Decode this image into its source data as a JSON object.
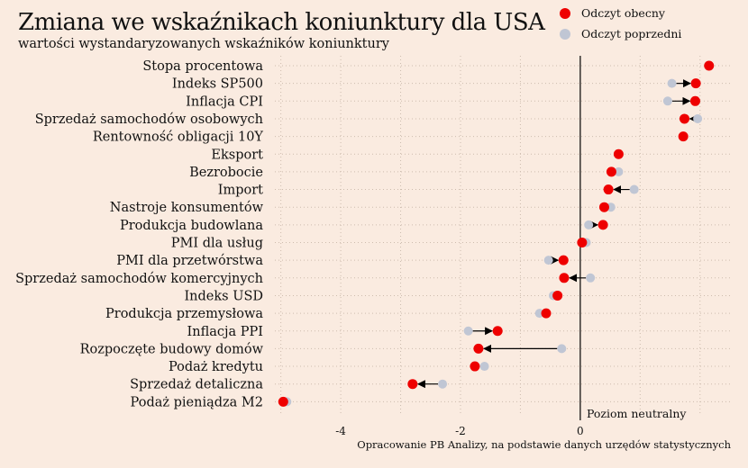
{
  "title": "Zmiana we wskaźnikach koniunktury dla USA",
  "subtitle": "wartości wystandaryzowanych wskaźników koniunktury",
  "caption": "Opracowanie PB Analizy, na podstawie danych urzędów statystycznych",
  "neutral_label": "Poziom neutralny",
  "colors": {
    "current": "#ee0000",
    "previous": "#c0c6d4",
    "background": "#faebe0",
    "arrow": "#000000",
    "grid": "#cdbcae"
  },
  "chart_data": {
    "type": "dot-arrow",
    "title": "Zmiana we wskaźnikach koniunktury dla USA",
    "subtitle": "wartości wystandaryzowanych wskaźników koniunktury",
    "xlim": [
      -5.1,
      2.5
    ],
    "xticks": [
      -4,
      -2,
      0
    ],
    "xtick_labels": [
      "-4",
      "-2",
      "0"
    ],
    "grid": true,
    "legend_position": "top-right",
    "series": [
      {
        "name": "Odczyt obecny",
        "color": "#ee0000"
      },
      {
        "name": "Odczyt poprzedni",
        "color": "#c0c6d4"
      }
    ],
    "categories": [
      "Stopa procentowa",
      "Indeks SP500",
      "Inflacja CPI",
      "Sprzedaż samochodów osobowych",
      "Rentowność obligacji 10Y",
      "Eksport",
      "Bezrobocie",
      "Import",
      "Nastroje konsumentów",
      "Produkcja budowlana",
      "PMI dla usług",
      "PMI dla przetwórstwa",
      "Sprzedaż samochodów komercyjnych",
      "Indeks USD",
      "Produkcja przemysłowa",
      "Inflacja PPI",
      "Rozpoczęte budowy domów",
      "Podaż kredytu",
      "Sprzedaż detaliczna",
      "Podaż pieniądza M2"
    ],
    "current": [
      2.15,
      1.93,
      1.92,
      1.74,
      1.72,
      0.64,
      0.52,
      0.47,
      0.4,
      0.38,
      0.03,
      -0.28,
      -0.27,
      -0.38,
      -0.57,
      -1.38,
      -1.7,
      -1.76,
      -2.8,
      -4.96
    ],
    "previous": [
      2.15,
      1.53,
      1.46,
      1.96,
      1.72,
      0.64,
      0.64,
      0.9,
      0.51,
      0.14,
      0.1,
      -0.53,
      0.17,
      -0.45,
      -0.68,
      -1.87,
      -0.31,
      -1.6,
      -2.3,
      -4.9
    ]
  }
}
